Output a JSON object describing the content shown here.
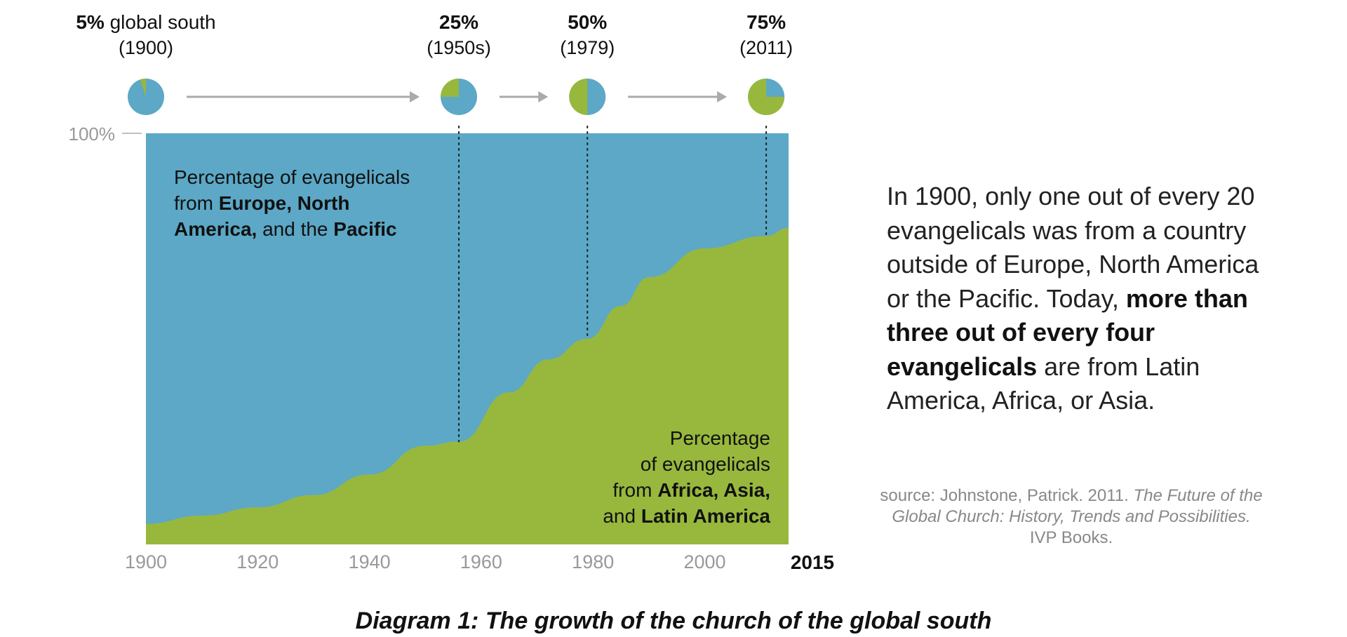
{
  "chart_data": {
    "type": "area",
    "title": "Diagram 1: The growth of the church of the global south",
    "x_ticks": [
      "1900",
      "1920",
      "1940",
      "1960",
      "1980",
      "2000"
    ],
    "x_last": "2015",
    "y_tick": "100%",
    "xlim": [
      1900,
      2015
    ],
    "ylim": [
      0,
      100
    ],
    "grid": false,
    "colors": {
      "north": "#5ca8c6",
      "south": "#98b83d"
    },
    "series": [
      {
        "name": "Percentage of evangelicals from Africa, Asia, and Latin America",
        "x": [
          1900,
          1910,
          1920,
          1930,
          1940,
          1950,
          1956,
          1965,
          1972,
          1979,
          1985,
          1990,
          2000,
          2011,
          2015
        ],
        "values": [
          5,
          7,
          9,
          12,
          17,
          24,
          25,
          37,
          45,
          50,
          58,
          65,
          72,
          75,
          77
        ]
      },
      {
        "name": "Percentage of evangelicals from Europe, North America, and the Pacific",
        "x": [
          1900,
          2015
        ],
        "values": [
          95,
          23
        ]
      }
    ],
    "milestones": [
      {
        "year": 1900,
        "label_bold": "5%",
        "label_rest": " global south",
        "sub": "(1900)",
        "pct": 5,
        "line": false
      },
      {
        "year": 1956,
        "label_bold": "25%",
        "label_rest": "",
        "sub": "(1950s)",
        "pct": 25,
        "line": true
      },
      {
        "year": 1979,
        "label_bold": "50%",
        "label_rest": "",
        "sub": "(1979)",
        "pct": 50,
        "line": true
      },
      {
        "year": 2011,
        "label_bold": "75%",
        "label_rest": "",
        "sub": "(2011)",
        "pct": 75,
        "line": true
      }
    ]
  },
  "labels": {
    "north": {
      "line1": "Percentage of evangelicals",
      "line2_pre": "from ",
      "line2_bold": "Europe, North",
      "line3_bold": "America,",
      "line3_mid": " and the ",
      "line3_bold2": "Pacific"
    },
    "south": {
      "line1": "Percentage",
      "line2": "of evangelicals",
      "line3_pre": "from ",
      "line3_bold": "Africa, Asia,",
      "line4_pre": "and ",
      "line4_bold": "Latin America"
    }
  },
  "note": {
    "text1": "In 1900, only one out of every 20 evangelicals was from a country outside of Europe, North America or the Pacific. Today, ",
    "bold": "more than three out of every four evangelicals",
    "text2": " are from Latin America, Africa, or Asia."
  },
  "source": {
    "prefix": "source: Johnstone, Patrick. 2011. ",
    "title_italic": "The Future of the Global Church: History, Trends and Possibilities.",
    "publisher": "IVP Books."
  },
  "caption": "Diagram 1: The growth of the church of the global south"
}
